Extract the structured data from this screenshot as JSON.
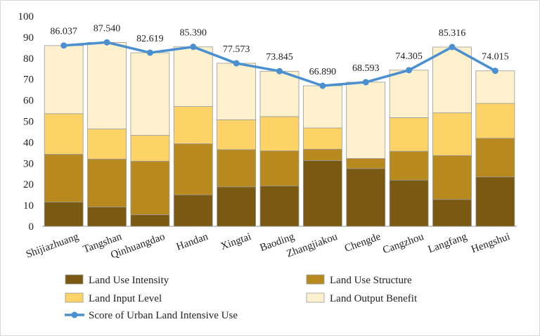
{
  "chart_data": {
    "type": "bar",
    "stacked": true,
    "categories": [
      "Shijiazhuang",
      "Tangshan",
      "Qinhuangdao",
      "Handan",
      "Xingtai",
      "Baoding",
      "Zhangjiakou",
      "Chengde",
      "Cangzhou",
      "Langfang",
      "Hengshui"
    ],
    "series": [
      {
        "name": "Land Use Intensity",
        "color": "#7a5a12",
        "values": [
          11.5,
          9.2,
          5.5,
          15.0,
          18.8,
          19.2,
          31.3,
          27.5,
          22.0,
          12.8,
          23.5
        ]
      },
      {
        "name": "Land Use Structure",
        "color": "#b8891f",
        "values": [
          22.8,
          22.8,
          25.5,
          24.3,
          17.7,
          16.7,
          5.4,
          4.8,
          13.7,
          20.9,
          18.4
        ]
      },
      {
        "name": "Land Input Level",
        "color": "#fdd267",
        "values": [
          19.3,
          14.3,
          12.3,
          17.7,
          14.2,
          16.3,
          10.1,
          0.0,
          16.0,
          20.3,
          16.6
        ]
      },
      {
        "name": "Land Output Benefit",
        "color": "#fdf1cd",
        "values": [
          32.4,
          41.2,
          39.3,
          28.4,
          26.9,
          21.6,
          20.1,
          36.3,
          22.6,
          31.3,
          15.5
        ]
      }
    ],
    "line_series": {
      "name": "Score of Urban Land Intensive Use",
      "color": "#4a90d0",
      "values": [
        86.037,
        87.54,
        82.619,
        85.39,
        77.573,
        73.845,
        66.89,
        68.593,
        74.305,
        85.316,
        74.015
      ],
      "labels": [
        "86.037",
        "87.540",
        "82.619",
        "85.390",
        "77.573",
        "73.845",
        "66.890",
        "68.593",
        "74.305",
        "85.316",
        "74.015"
      ]
    },
    "ylim": [
      0,
      100
    ],
    "yticks": [
      "0",
      "10",
      "20",
      "30",
      "40",
      "50",
      "60",
      "70",
      "80",
      "90",
      "100"
    ],
    "title": "",
    "xlabel": "",
    "ylabel": "",
    "grid": false,
    "legend_position": "bottom"
  }
}
